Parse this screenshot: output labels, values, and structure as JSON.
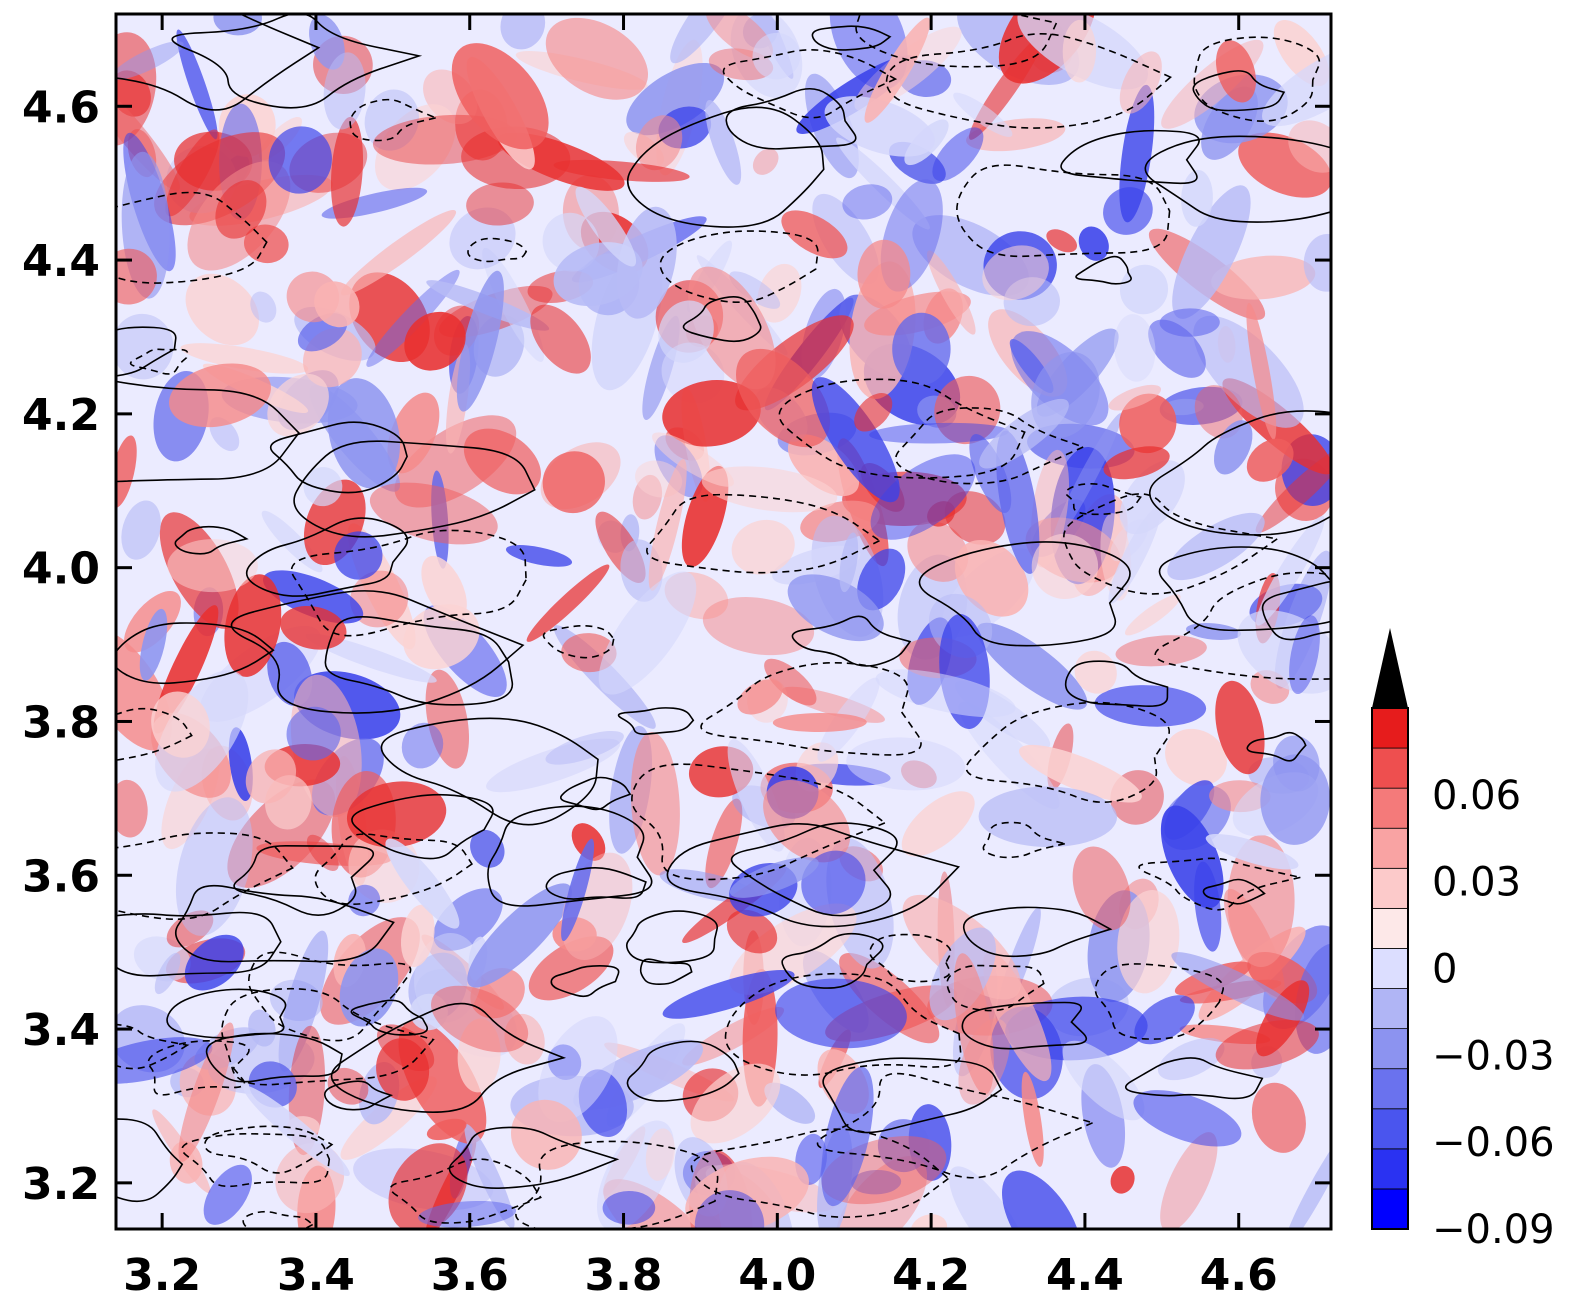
{
  "chart_data": {
    "type": "heatmap",
    "title": "",
    "xlabel": "",
    "ylabel": "",
    "xlim": [
      3.14,
      4.72
    ],
    "ylim": [
      3.14,
      4.72
    ],
    "x_ticks": [
      3.2,
      3.4,
      3.6,
      3.8,
      4.0,
      4.2,
      4.4,
      4.6
    ],
    "y_ticks": [
      3.2,
      3.4,
      3.6,
      3.8,
      4.0,
      4.2,
      4.4,
      4.6
    ],
    "x_tick_labels": [
      "3.2",
      "3.4",
      "3.6",
      "3.8",
      "4.0",
      "4.2",
      "4.4",
      "4.6"
    ],
    "y_tick_labels": [
      "3.2",
      "3.4",
      "3.6",
      "3.8",
      "4.0",
      "4.2",
      "4.4",
      "4.6"
    ],
    "field_description": "turbulent field, red positive / blue negative, with solid (positive) and dashed (negative) contour lines overlaid",
    "colorbar": {
      "levels": [
        -0.09,
        -0.075,
        -0.06,
        -0.045,
        -0.03,
        -0.015,
        0,
        0.015,
        0.03,
        0.045,
        0.06,
        0.075,
        0.09
      ],
      "tick_values": [
        -0.09,
        -0.06,
        -0.03,
        0,
        0.03,
        0.06
      ],
      "tick_labels": [
        "−0.09",
        "−0.06",
        "−0.03",
        "0",
        "0.03",
        "0.06"
      ],
      "extend": "max",
      "extend_color": "#000000",
      "colors": [
        "#0000ff",
        "#2a32f2",
        "#4a55ee",
        "#6a72ee",
        "#8c93f0",
        "#b0b5f5",
        "#dcdeff",
        "#fde8e8",
        "#fccaca",
        "#f9a3a3",
        "#f47a7a",
        "#ee4f4f",
        "#e61c1c"
      ]
    }
  }
}
